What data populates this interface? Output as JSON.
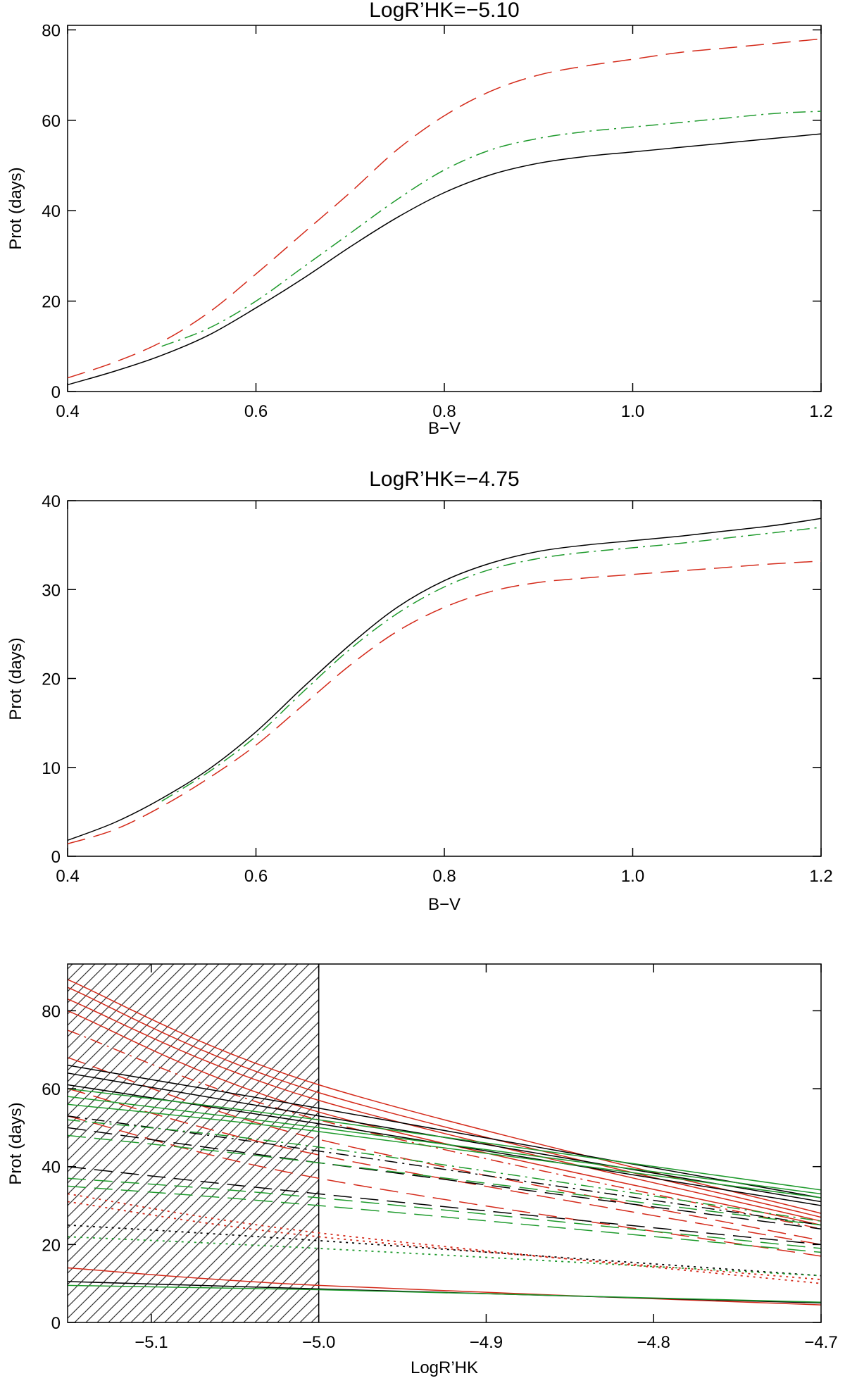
{
  "colors": {
    "black": "#000000",
    "red": "#d42a1a",
    "green": "#1e9a2c",
    "hatch": "#333333"
  },
  "chart_data": [
    {
      "type": "line",
      "title": "LogR’HK=−5.10",
      "xlabel": "B−V",
      "ylabel": "Prot (days)",
      "xlim": [
        0.4,
        1.2
      ],
      "ylim": [
        0,
        81
      ],
      "xticks": [
        {
          "v": 0.4,
          "label": "0.4"
        },
        {
          "v": 0.6,
          "label": "0.6"
        },
        {
          "v": 0.8,
          "label": "0.8"
        },
        {
          "v": 1.0,
          "label": "1.0"
        },
        {
          "v": 1.2,
          "label": "1.2"
        }
      ],
      "yticks": [
        {
          "v": 0,
          "label": "0"
        },
        {
          "v": 20,
          "label": "20"
        },
        {
          "v": 40,
          "label": "40"
        },
        {
          "v": 60,
          "label": "60"
        },
        {
          "v": 80,
          "label": "80"
        }
      ],
      "series": [
        {
          "name": "solid",
          "color": "black",
          "style": "solid",
          "x": [
            0.4,
            0.45,
            0.5,
            0.55,
            0.6,
            0.65,
            0.7,
            0.75,
            0.8,
            0.85,
            0.9,
            0.95,
            1.0,
            1.05,
            1.1,
            1.15,
            1.2
          ],
          "y": [
            1.5,
            4.5,
            8.0,
            12.5,
            18.5,
            25.0,
            32.0,
            38.5,
            44.0,
            48.0,
            50.5,
            52.0,
            53.0,
            54.0,
            55.0,
            56.0,
            57.0
          ]
        },
        {
          "name": "dash-dot",
          "color": "green",
          "style": "dashdot",
          "x": [
            0.5,
            0.55,
            0.6,
            0.65,
            0.7,
            0.75,
            0.8,
            0.85,
            0.9,
            0.95,
            1.0,
            1.05,
            1.1,
            1.15,
            1.2
          ],
          "y": [
            10.0,
            14.0,
            20.0,
            27.5,
            35.0,
            42.5,
            49.0,
            53.5,
            56.0,
            57.5,
            58.5,
            59.5,
            60.5,
            61.5,
            62.0
          ]
        },
        {
          "name": "long-dash",
          "color": "red",
          "style": "dash",
          "x": [
            0.4,
            0.45,
            0.5,
            0.55,
            0.6,
            0.65,
            0.7,
            0.75,
            0.8,
            0.85,
            0.9,
            0.95,
            1.0,
            1.05,
            1.1,
            1.15,
            1.2
          ],
          "y": [
            3.0,
            6.5,
            11.0,
            17.5,
            26.0,
            35.0,
            44.0,
            53.5,
            61.0,
            66.5,
            70.0,
            72.0,
            73.5,
            75.0,
            76.0,
            77.0,
            78.0
          ]
        }
      ]
    },
    {
      "type": "line",
      "title": "LogR’HK=−4.75",
      "xlabel": "B−V",
      "ylabel": "Prot (days)",
      "xlim": [
        0.4,
        1.2
      ],
      "ylim": [
        0,
        40
      ],
      "xticks": [
        {
          "v": 0.4,
          "label": "0.4"
        },
        {
          "v": 0.6,
          "label": "0.6"
        },
        {
          "v": 0.8,
          "label": "0.8"
        },
        {
          "v": 1.0,
          "label": "1.0"
        },
        {
          "v": 1.2,
          "label": "1.2"
        }
      ],
      "yticks": [
        {
          "v": 0,
          "label": "0"
        },
        {
          "v": 10,
          "label": "10"
        },
        {
          "v": 20,
          "label": "20"
        },
        {
          "v": 30,
          "label": "30"
        },
        {
          "v": 40,
          "label": "40"
        }
      ],
      "series": [
        {
          "name": "solid",
          "color": "black",
          "style": "solid",
          "x": [
            0.4,
            0.45,
            0.5,
            0.55,
            0.6,
            0.65,
            0.7,
            0.75,
            0.8,
            0.85,
            0.9,
            0.95,
            1.0,
            1.05,
            1.1,
            1.15,
            1.2
          ],
          "y": [
            1.8,
            3.8,
            6.5,
            9.8,
            14.0,
            19.0,
            23.8,
            28.0,
            31.0,
            33.0,
            34.3,
            35.0,
            35.5,
            36.0,
            36.6,
            37.2,
            38.0
          ]
        },
        {
          "name": "dash-dot",
          "color": "green",
          "style": "dashdot",
          "x": [
            0.5,
            0.55,
            0.6,
            0.65,
            0.7,
            0.75,
            0.8,
            0.85,
            0.9,
            0.95,
            1.0,
            1.05,
            1.1,
            1.15,
            1.2
          ],
          "y": [
            6.2,
            9.5,
            13.5,
            18.5,
            23.3,
            27.3,
            30.3,
            32.3,
            33.5,
            34.2,
            34.7,
            35.2,
            35.8,
            36.4,
            37.0
          ]
        },
        {
          "name": "long-dash",
          "color": "red",
          "style": "dash",
          "x": [
            0.4,
            0.45,
            0.5,
            0.55,
            0.6,
            0.65,
            0.7,
            0.75,
            0.8,
            0.85,
            0.9,
            0.95,
            1.0,
            1.05,
            1.1,
            1.15,
            1.2
          ],
          "y": [
            1.4,
            3.0,
            5.6,
            8.8,
            12.5,
            17.0,
            21.5,
            25.3,
            28.0,
            29.8,
            30.8,
            31.3,
            31.7,
            32.1,
            32.5,
            32.9,
            33.2
          ]
        }
      ]
    },
    {
      "type": "line",
      "title": "",
      "xlabel": "LogR’HK",
      "ylabel": "Prot (days)",
      "xlim": [
        -5.15,
        -4.7
      ],
      "ylim": [
        0,
        92
      ],
      "hatched_region": [
        -5.15,
        -5.0
      ],
      "xticks": [
        {
          "v": -5.1,
          "label": "−5.1"
        },
        {
          "v": -5.0,
          "label": "−5.0"
        },
        {
          "v": -4.9,
          "label": "−4.9"
        },
        {
          "v": -4.8,
          "label": "−4.8"
        },
        {
          "v": -4.7,
          "label": "−4.7"
        }
      ],
      "yticks": [
        {
          "v": 0,
          "label": "0"
        },
        {
          "v": 20,
          "label": "20"
        },
        {
          "v": 40,
          "label": "40"
        },
        {
          "v": 60,
          "label": "60"
        },
        {
          "v": 80,
          "label": "80"
        }
      ],
      "series": [
        {
          "color": "red",
          "style": "solid",
          "y_start": 88,
          "y_mid": 61,
          "y_end": 28
        },
        {
          "color": "red",
          "style": "solid",
          "y_start": 86,
          "y_mid": 59,
          "y_end": 27
        },
        {
          "color": "red",
          "style": "solid",
          "y_start": 83,
          "y_mid": 57,
          "y_end": 26
        },
        {
          "color": "red",
          "style": "solid",
          "y_start": 80,
          "y_mid": 54,
          "y_end": 25
        },
        {
          "color": "red",
          "style": "dashdot",
          "y_start": 75,
          "y_mid": 52,
          "y_end": 24
        },
        {
          "color": "red",
          "style": "dash",
          "y_start": 68,
          "y_mid": 47,
          "y_end": 21
        },
        {
          "color": "red",
          "style": "dash",
          "y_start": 60,
          "y_mid": 43,
          "y_end": 20
        },
        {
          "color": "red",
          "style": "dash",
          "y_start": 53,
          "y_mid": 37,
          "y_end": 17
        },
        {
          "color": "red",
          "style": "dot",
          "y_start": 33,
          "y_mid": 23,
          "y_end": 10
        },
        {
          "color": "red",
          "style": "dot",
          "y_start": 31,
          "y_mid": 22,
          "y_end": 11
        },
        {
          "color": "red",
          "style": "solid",
          "y_start": 14,
          "y_mid": 9.5,
          "y_end": 4.5
        },
        {
          "color": "black",
          "style": "solid",
          "y_start": 66,
          "y_mid": 55,
          "y_end": 32
        },
        {
          "color": "black",
          "style": "solid",
          "y_start": 64,
          "y_mid": 53,
          "y_end": 31
        },
        {
          "color": "black",
          "style": "solid",
          "y_start": 61,
          "y_mid": 51,
          "y_end": 30
        },
        {
          "color": "black",
          "style": "dashdot",
          "y_start": 53,
          "y_mid": 44,
          "y_end": 25
        },
        {
          "color": "black",
          "style": "dash",
          "y_start": 50,
          "y_mid": 41,
          "y_end": 24
        },
        {
          "color": "black",
          "style": "dash",
          "y_start": 40,
          "y_mid": 33,
          "y_end": 20
        },
        {
          "color": "black",
          "style": "dot",
          "y_start": 25,
          "y_mid": 21,
          "y_end": 12
        },
        {
          "color": "black",
          "style": "solid",
          "y_start": 10.5,
          "y_mid": 8.6,
          "y_end": 5
        },
        {
          "color": "green",
          "style": "solid",
          "y_start": 60,
          "y_mid": 52,
          "y_end": 34
        },
        {
          "color": "green",
          "style": "solid",
          "y_start": 58,
          "y_mid": 50,
          "y_end": 33
        },
        {
          "color": "green",
          "style": "solid",
          "y_start": 56,
          "y_mid": 49,
          "y_end": 32
        },
        {
          "color": "green",
          "style": "dashdot",
          "y_start": 52,
          "y_mid": 45,
          "y_end": 26
        },
        {
          "color": "green",
          "style": "dash",
          "y_start": 48,
          "y_mid": 41,
          "y_end": 25
        },
        {
          "color": "green",
          "style": "dash",
          "y_start": 37,
          "y_mid": 32,
          "y_end": 19
        },
        {
          "color": "green",
          "style": "dash",
          "y_start": 35,
          "y_mid": 30,
          "y_end": 18
        },
        {
          "color": "green",
          "style": "dot",
          "y_start": 22,
          "y_mid": 19,
          "y_end": 12
        },
        {
          "color": "green",
          "style": "solid",
          "y_start": 9.5,
          "y_mid": 8.4,
          "y_end": 5.2
        }
      ]
    }
  ]
}
